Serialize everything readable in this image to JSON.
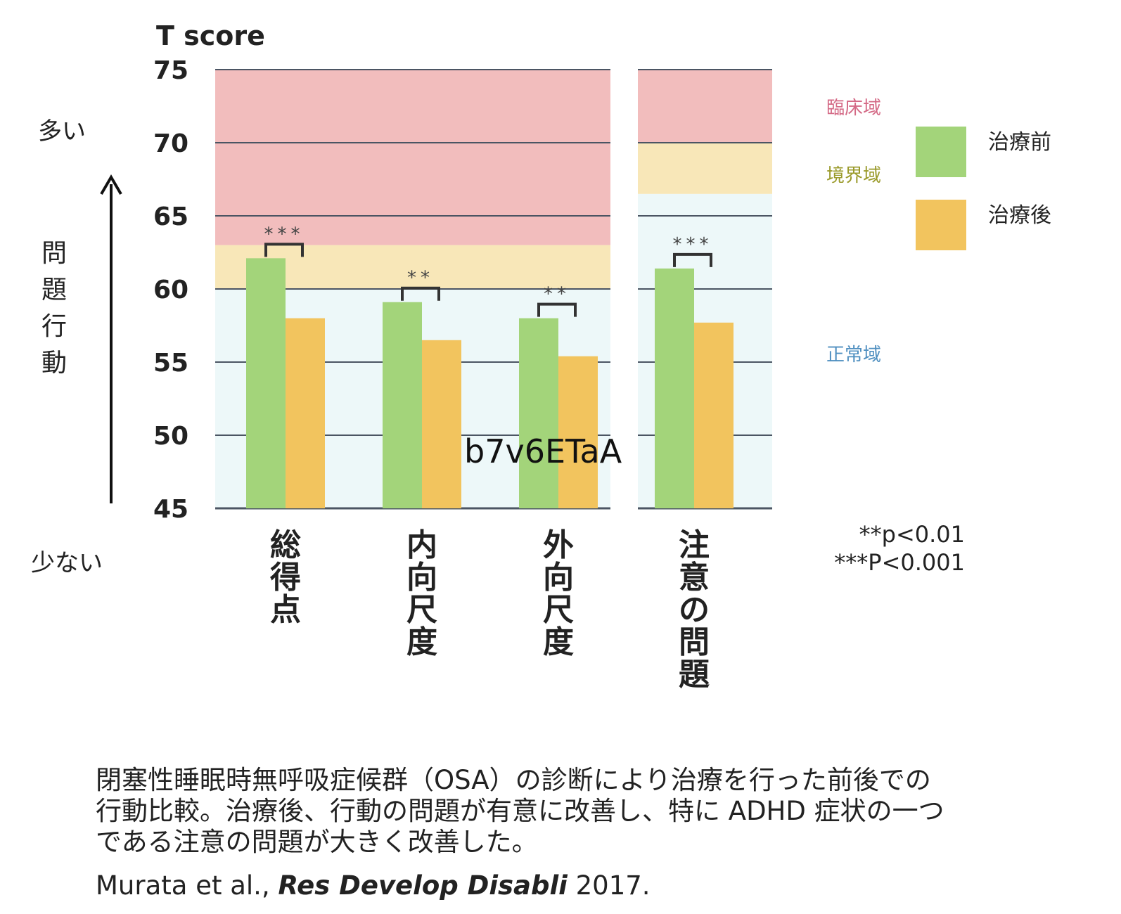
{
  "chart_data": {
    "type": "bar",
    "ylabel": "T score",
    "ylim": [
      45,
      75
    ],
    "yticks": [
      45,
      50,
      55,
      60,
      65,
      70,
      75
    ],
    "categories": [
      "総得点",
      "内向尺度",
      "外向尺度",
      "注意の問題"
    ],
    "series": [
      {
        "name": "治療前",
        "color": "#a3d47a",
        "values": [
          62.1,
          59.1,
          58.0,
          61.4
        ]
      },
      {
        "name": "治療後",
        "color": "#f2c45e",
        "values": [
          58.0,
          56.5,
          55.4,
          57.7
        ]
      }
    ],
    "significance": [
      "***",
      "**",
      "**",
      "***"
    ],
    "zones": {
      "clinical": {
        "label": "臨床域",
        "color": "#d46a86"
      },
      "borderline": {
        "label": "境界域",
        "color": "#9a9a2a"
      },
      "normal": {
        "label": "正常域",
        "color": "#4f8fc0"
      }
    },
    "zone_thresholds": {
      "group_a": {
        "borderline_from": 60,
        "clinical_from": 63
      },
      "group_b": {
        "borderline_from": 66.5,
        "clinical_from": 70
      }
    },
    "arrow_labels": {
      "top": "多い",
      "middle": "問題行動",
      "bottom": "少ない"
    },
    "pvalue_notes": [
      "**p<0.01",
      "***P<0.001"
    ],
    "overlay_text": "b7v6ETaA"
  },
  "caption": {
    "lines": [
      "閉塞性睡眠時無呼吸症候群（OSA）の診断により治療を行った前後での",
      "行動比較。治療後、行動の問題が有意に改善し、特に ADHD 症状の一つ",
      "である注意の問題が大きく改善した。"
    ],
    "citation_authors": "Murata et al., ",
    "citation_journal": "Res Develop Disabli",
    "citation_year": " 2017."
  }
}
